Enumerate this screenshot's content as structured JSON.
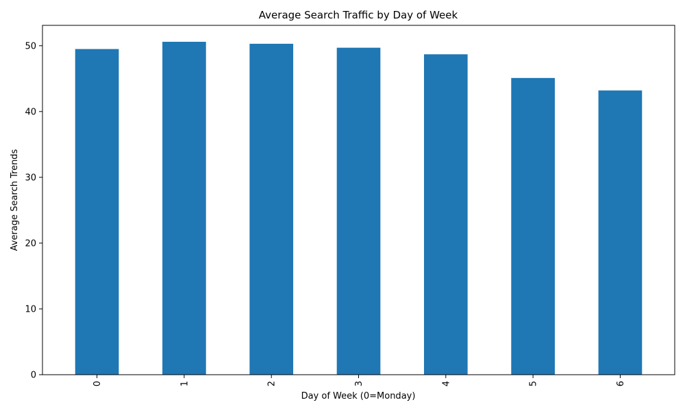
{
  "chart_data": {
    "type": "bar",
    "title": "Average Search Traffic by Day of Week",
    "xlabel": "Day of Week (0=Monday)",
    "ylabel": "Average Search Trends",
    "categories": [
      "0",
      "1",
      "2",
      "3",
      "4",
      "5",
      "6"
    ],
    "values": [
      49.5,
      50.6,
      50.3,
      49.7,
      48.7,
      45.1,
      43.2
    ],
    "ylim": [
      0,
      53.1
    ],
    "yticks": [
      0,
      10,
      20,
      30,
      40,
      50
    ],
    "xtick_rotation": "vertical",
    "grid": false,
    "legend": "none",
    "bar_color": "#1f77b4"
  }
}
